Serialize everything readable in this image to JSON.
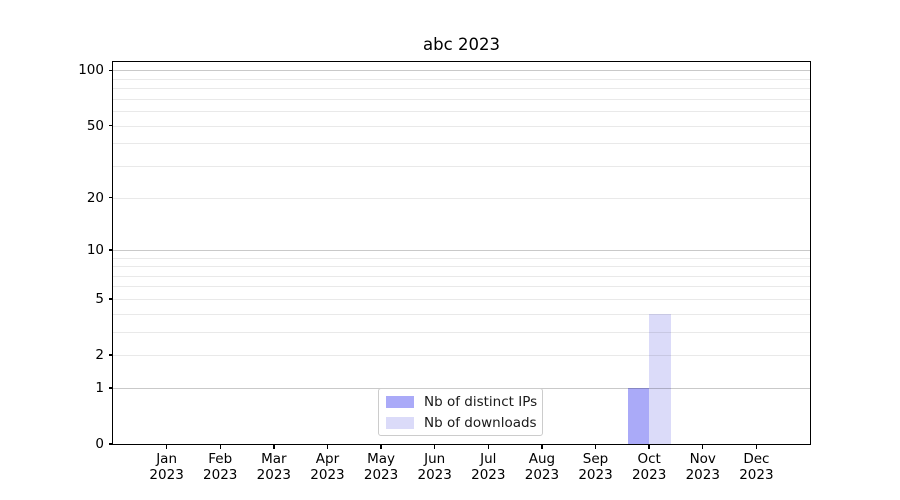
{
  "chart_data": {
    "type": "bar",
    "title": "abc 2023",
    "x": {
      "months": [
        "Jan",
        "Feb",
        "Mar",
        "Apr",
        "May",
        "Jun",
        "Jul",
        "Aug",
        "Sep",
        "Oct",
        "Nov",
        "Dec"
      ],
      "year": "2023"
    },
    "series": [
      {
        "name": "Nb of distinct IPs",
        "color": "#aaaaf8",
        "values": [
          0,
          0,
          0,
          0,
          0,
          0,
          0,
          0,
          0,
          1,
          0,
          0
        ]
      },
      {
        "name": "Nb of downloads",
        "color": "#dbdbf9",
        "values": [
          0,
          0,
          0,
          0,
          0,
          0,
          0,
          0,
          0,
          4,
          0,
          0
        ]
      }
    ],
    "y_axis": {
      "scale": "log1p",
      "tick_labels": [
        0,
        1,
        2,
        5,
        10,
        20,
        50,
        100
      ],
      "major_gridlines": [
        1,
        10,
        100
      ],
      "minor_gridlines": [
        2,
        3,
        4,
        5,
        6,
        7,
        8,
        9,
        20,
        30,
        40,
        50,
        60,
        70,
        80,
        90
      ],
      "range": [
        0,
        111
      ]
    },
    "legend": {
      "position": "lower-center"
    },
    "grid": true
  },
  "colors": {
    "background": "#ffffff",
    "spine": "#000000",
    "major_grid": "rgba(0,0,0,0.21)",
    "minor_grid": "rgba(0,0,0,0.085)",
    "legend_border": "#cccccc",
    "bar_distinct_ips": "#aaaaf8",
    "bar_downloads": "#dbdbf9"
  }
}
